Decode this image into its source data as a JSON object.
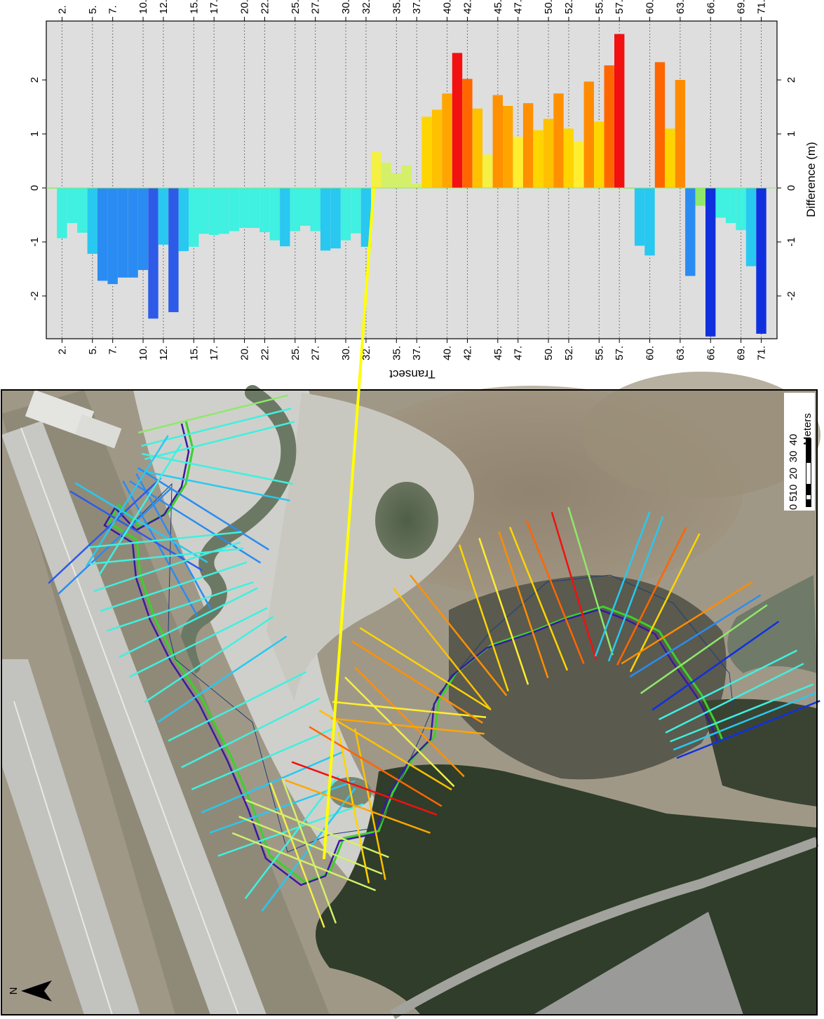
{
  "chart_data": {
    "type": "bar",
    "orientation": "horizontal-bars-on-vertical-transect-axis",
    "xlabel": "Difference (m)",
    "ylabel": "Transect",
    "xlim": [
      -2.75,
      2.85
    ],
    "x_ticks": [
      -2,
      -1,
      0,
      1,
      2
    ],
    "x_tick_labels": [
      "-2",
      "-1",
      "0",
      "1",
      "2"
    ],
    "y_tick_labels": [
      "2.",
      "5.",
      "7.",
      "10.",
      "12.",
      "15.",
      "17.",
      "20.",
      "22.",
      "25.",
      "27.",
      "30.",
      "32.",
      "35.",
      "37.",
      "40.",
      "42.",
      "45.",
      "47.",
      "50.",
      "52.",
      "55.",
      "57.",
      "60.",
      "63.",
      "66.",
      "69.",
      "71."
    ],
    "grid": "dotted horizontal lines at labelled transects",
    "legend": "none",
    "bars": [
      {
        "transect": 1,
        "value": 0.0,
        "color": "#8fe86b"
      },
      {
        "transect": 2,
        "value": -0.93,
        "color": "#40f0e0"
      },
      {
        "transect": 3,
        "value": -0.65,
        "color": "#40f0e0"
      },
      {
        "transect": 4,
        "value": -0.83,
        "color": "#40f0e0"
      },
      {
        "transect": 5,
        "value": -1.22,
        "color": "#28c8f0"
      },
      {
        "transect": 6,
        "value": -1.72,
        "color": "#2a8cf2"
      },
      {
        "transect": 7,
        "value": -1.78,
        "color": "#2a8cf2"
      },
      {
        "transect": 8,
        "value": -1.66,
        "color": "#2a8cf2"
      },
      {
        "transect": 9,
        "value": -1.66,
        "color": "#2a8cf2"
      },
      {
        "transect": 10,
        "value": -1.52,
        "color": "#2a8cf2"
      },
      {
        "transect": 11,
        "value": -2.42,
        "color": "#2d5be8"
      },
      {
        "transect": 12,
        "value": -1.05,
        "color": "#28c8f0"
      },
      {
        "transect": 13,
        "value": -2.3,
        "color": "#2d5be8"
      },
      {
        "transect": 14,
        "value": -1.17,
        "color": "#28c8f0"
      },
      {
        "transect": 15,
        "value": -1.09,
        "color": "#40f0e0"
      },
      {
        "transect": 16,
        "value": -0.85,
        "color": "#40f0e0"
      },
      {
        "transect": 17,
        "value": -0.87,
        "color": "#40f0e0"
      },
      {
        "transect": 18,
        "value": -0.85,
        "color": "#40f0e0"
      },
      {
        "transect": 19,
        "value": -0.8,
        "color": "#40f0e0"
      },
      {
        "transect": 20,
        "value": -0.74,
        "color": "#40f0e0"
      },
      {
        "transect": 21,
        "value": -0.74,
        "color": "#40f0e0"
      },
      {
        "transect": 22,
        "value": -0.82,
        "color": "#40f0e0"
      },
      {
        "transect": 23,
        "value": -0.97,
        "color": "#40f0e0"
      },
      {
        "transect": 24,
        "value": -1.08,
        "color": "#28c8f0"
      },
      {
        "transect": 25,
        "value": -0.8,
        "color": "#40f0e0"
      },
      {
        "transect": 26,
        "value": -0.7,
        "color": "#40f0e0"
      },
      {
        "transect": 27,
        "value": -0.8,
        "color": "#40f0e0"
      },
      {
        "transect": 28,
        "value": -1.16,
        "color": "#28c8f0"
      },
      {
        "transect": 29,
        "value": -1.12,
        "color": "#28c8f0"
      },
      {
        "transect": 30,
        "value": -0.97,
        "color": "#40f0e0"
      },
      {
        "transect": 31,
        "value": -0.84,
        "color": "#40f0e0"
      },
      {
        "transect": 32,
        "value": -1.09,
        "color": "#28c8f0"
      },
      {
        "transect": 33,
        "value": 0.67,
        "color": "#f4f044"
      },
      {
        "transect": 34,
        "value": 0.47,
        "color": "#d4f06a"
      },
      {
        "transect": 35,
        "value": 0.27,
        "color": "#d4f06a"
      },
      {
        "transect": 36,
        "value": 0.42,
        "color": "#d4f06a"
      },
      {
        "transect": 37,
        "value": 0.08,
        "color": "#d4f06a"
      },
      {
        "transect": 38,
        "value": 1.32,
        "color": "#ffd500"
      },
      {
        "transect": 39,
        "value": 1.45,
        "color": "#ffc000"
      },
      {
        "transect": 40,
        "value": 1.75,
        "color": "#ffa500"
      },
      {
        "transect": 41,
        "value": 2.5,
        "color": "#f21010"
      },
      {
        "transect": 42,
        "value": 2.02,
        "color": "#ff6600"
      },
      {
        "transect": 43,
        "value": 1.47,
        "color": "#ffc000"
      },
      {
        "transect": 44,
        "value": 0.62,
        "color": "#f4f044"
      },
      {
        "transect": 45,
        "value": 1.72,
        "color": "#ff9000"
      },
      {
        "transect": 46,
        "value": 1.52,
        "color": "#ffa500"
      },
      {
        "transect": 47,
        "value": 0.95,
        "color": "#ffee30"
      },
      {
        "transect": 48,
        "value": 1.57,
        "color": "#ff9000"
      },
      {
        "transect": 49,
        "value": 1.07,
        "color": "#ffd500"
      },
      {
        "transect": 50,
        "value": 1.28,
        "color": "#ffc000"
      },
      {
        "transect": 51,
        "value": 1.75,
        "color": "#ff9000"
      },
      {
        "transect": 52,
        "value": 1.1,
        "color": "#ffd500"
      },
      {
        "transect": 53,
        "value": 0.87,
        "color": "#ffee30"
      },
      {
        "transect": 54,
        "value": 1.97,
        "color": "#ff8c00"
      },
      {
        "transect": 55,
        "value": 1.23,
        "color": "#ffd500"
      },
      {
        "transect": 56,
        "value": 2.27,
        "color": "#ff6600"
      },
      {
        "transect": 57,
        "value": 2.85,
        "color": "#f21010"
      },
      {
        "transect": 58,
        "value": 0.0,
        "color": "#8fe86b"
      },
      {
        "transect": 59,
        "value": -1.07,
        "color": "#28c8f0"
      },
      {
        "transect": 60,
        "value": -1.25,
        "color": "#28c8f0"
      },
      {
        "transect": 61,
        "value": 2.33,
        "color": "#ff6600"
      },
      {
        "transect": 62,
        "value": 1.1,
        "color": "#ffd500"
      },
      {
        "transect": 63,
        "value": 2.0,
        "color": "#ff8c00"
      },
      {
        "transect": 64,
        "value": -1.63,
        "color": "#2a8cf2"
      },
      {
        "transect": 65,
        "value": -0.33,
        "color": "#8fe86b"
      },
      {
        "transect": 66,
        "value": -2.75,
        "color": "#1030e0"
      },
      {
        "transect": 67,
        "value": -0.55,
        "color": "#40f0e0"
      },
      {
        "transect": 68,
        "value": -0.65,
        "color": "#40f0e0"
      },
      {
        "transect": 69,
        "value": -0.78,
        "color": "#40f0e0"
      },
      {
        "transect": 70,
        "value": -1.45,
        "color": "#28c8f0"
      },
      {
        "transect": 71,
        "value": -2.7,
        "color": "#1030e0"
      }
    ]
  },
  "map": {
    "scale_bar": {
      "unit_label": "Meters",
      "tick_labels": [
        "0",
        "5",
        "10",
        "20",
        "30",
        "40"
      ]
    },
    "north_arrow": {
      "label": "N"
    },
    "callout_color": "#ffff00"
  }
}
